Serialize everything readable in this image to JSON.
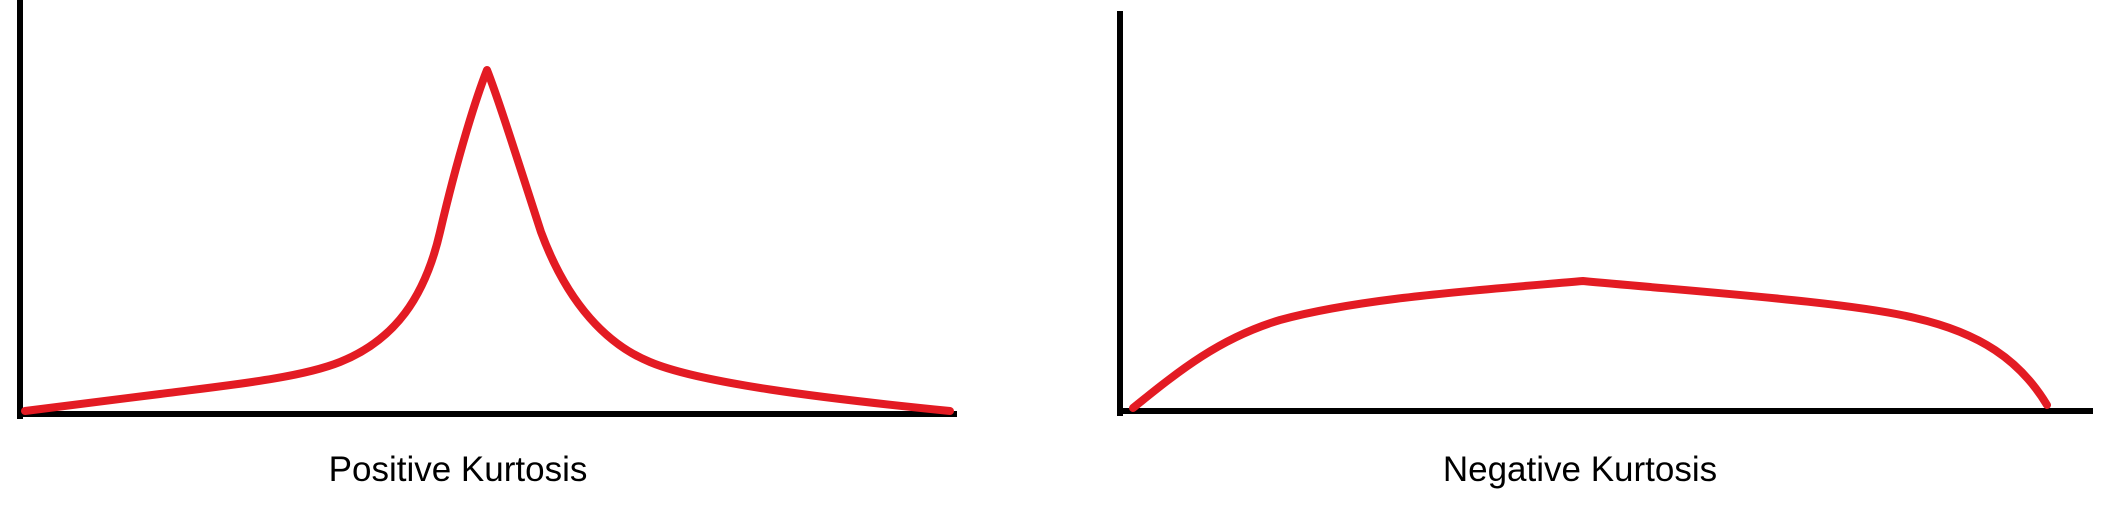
{
  "colors": {
    "axis": "#000000",
    "curve": "#e31b23",
    "background": "#ffffff"
  },
  "panels": [
    {
      "caption": "Positive Kurtosis",
      "curve_shape": "sharp-peak-heavy-tails"
    },
    {
      "caption": "Negative Kurtosis",
      "curve_shape": "flat-broad-peak"
    }
  ]
}
